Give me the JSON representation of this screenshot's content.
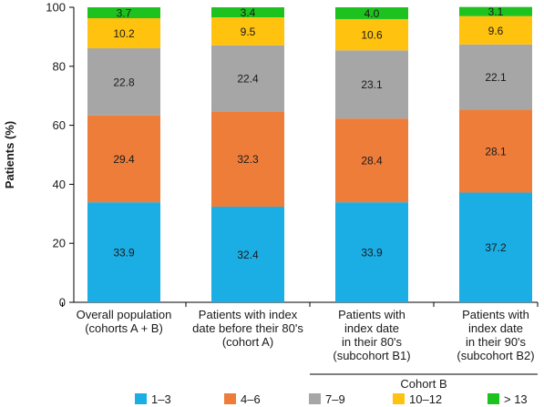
{
  "chart_data": {
    "type": "bar",
    "stacked": true,
    "ylabel": "Patients (%)",
    "ylim": [
      0,
      100
    ],
    "yticks": [
      0,
      20,
      40,
      60,
      80,
      100
    ],
    "grid": false,
    "legend_position": "bottom",
    "categories": [
      [
        "Overall population",
        "(cohorts A + B)"
      ],
      [
        "Patients with index",
        "date before their 80's",
        "(cohort A)"
      ],
      [
        "Patients with",
        "index date",
        "in their 80's",
        "(subcohort B1)"
      ],
      [
        "Patients with",
        "index date",
        "in their 90's",
        "(subcohort B2)"
      ]
    ],
    "group_label": "Cohort B",
    "series": [
      {
        "name": "1–3",
        "color": "#1aaee5",
        "values": [
          33.9,
          32.4,
          33.9,
          37.2
        ]
      },
      {
        "name": "4–6",
        "color": "#ee7d3a",
        "values": [
          29.4,
          32.3,
          28.4,
          28.1
        ]
      },
      {
        "name": "7–9",
        "color": "#a6a6a6",
        "values": [
          22.8,
          22.4,
          23.1,
          22.1
        ]
      },
      {
        "name": "10–12",
        "color": "#ffc20e",
        "values": [
          10.2,
          9.5,
          10.6,
          9.6
        ]
      },
      {
        "name": "> 13",
        "color": "#1ec21e",
        "values": [
          3.7,
          3.4,
          4.0,
          3.1
        ]
      }
    ]
  }
}
